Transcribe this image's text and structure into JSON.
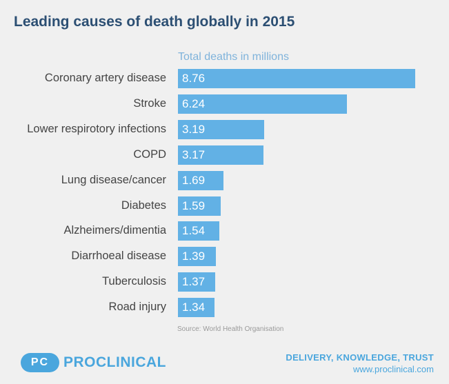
{
  "header": {
    "title": "Leading causes of death globally in 2015"
  },
  "chart_data": {
    "type": "bar",
    "orientation": "horizontal",
    "title": "Leading causes of death globally in 2015",
    "series_label": "Total deaths in millions",
    "categories": [
      "Coronary artery disease",
      "Stroke",
      "Lower respirotory infections",
      "COPD",
      "Lung disease/cancer",
      "Diabetes",
      "Alzheimers/dimentia",
      "Diarrhoeal disease",
      "Tuberculosis",
      "Road injury"
    ],
    "values": [
      8.76,
      6.24,
      3.19,
      3.17,
      1.69,
      1.59,
      1.54,
      1.39,
      1.37,
      1.34
    ],
    "value_labels": [
      "8.76",
      "6.24",
      "3.19",
      "3.17",
      "1.69",
      "1.59",
      "1.54",
      "1.39",
      "1.37",
      "1.34"
    ],
    "xlim": [
      0,
      8.76
    ],
    "source": "Source: World Health Organisation",
    "bar_color": "#62b1e5"
  },
  "footer": {
    "logo_mark": "PC",
    "logo_text": "PROCLINICAL",
    "tagline": "DELIVERY, KNOWLEDGE, TRUST",
    "url": "www.proclinical.com",
    "brand_color": "#4aa6dd"
  }
}
